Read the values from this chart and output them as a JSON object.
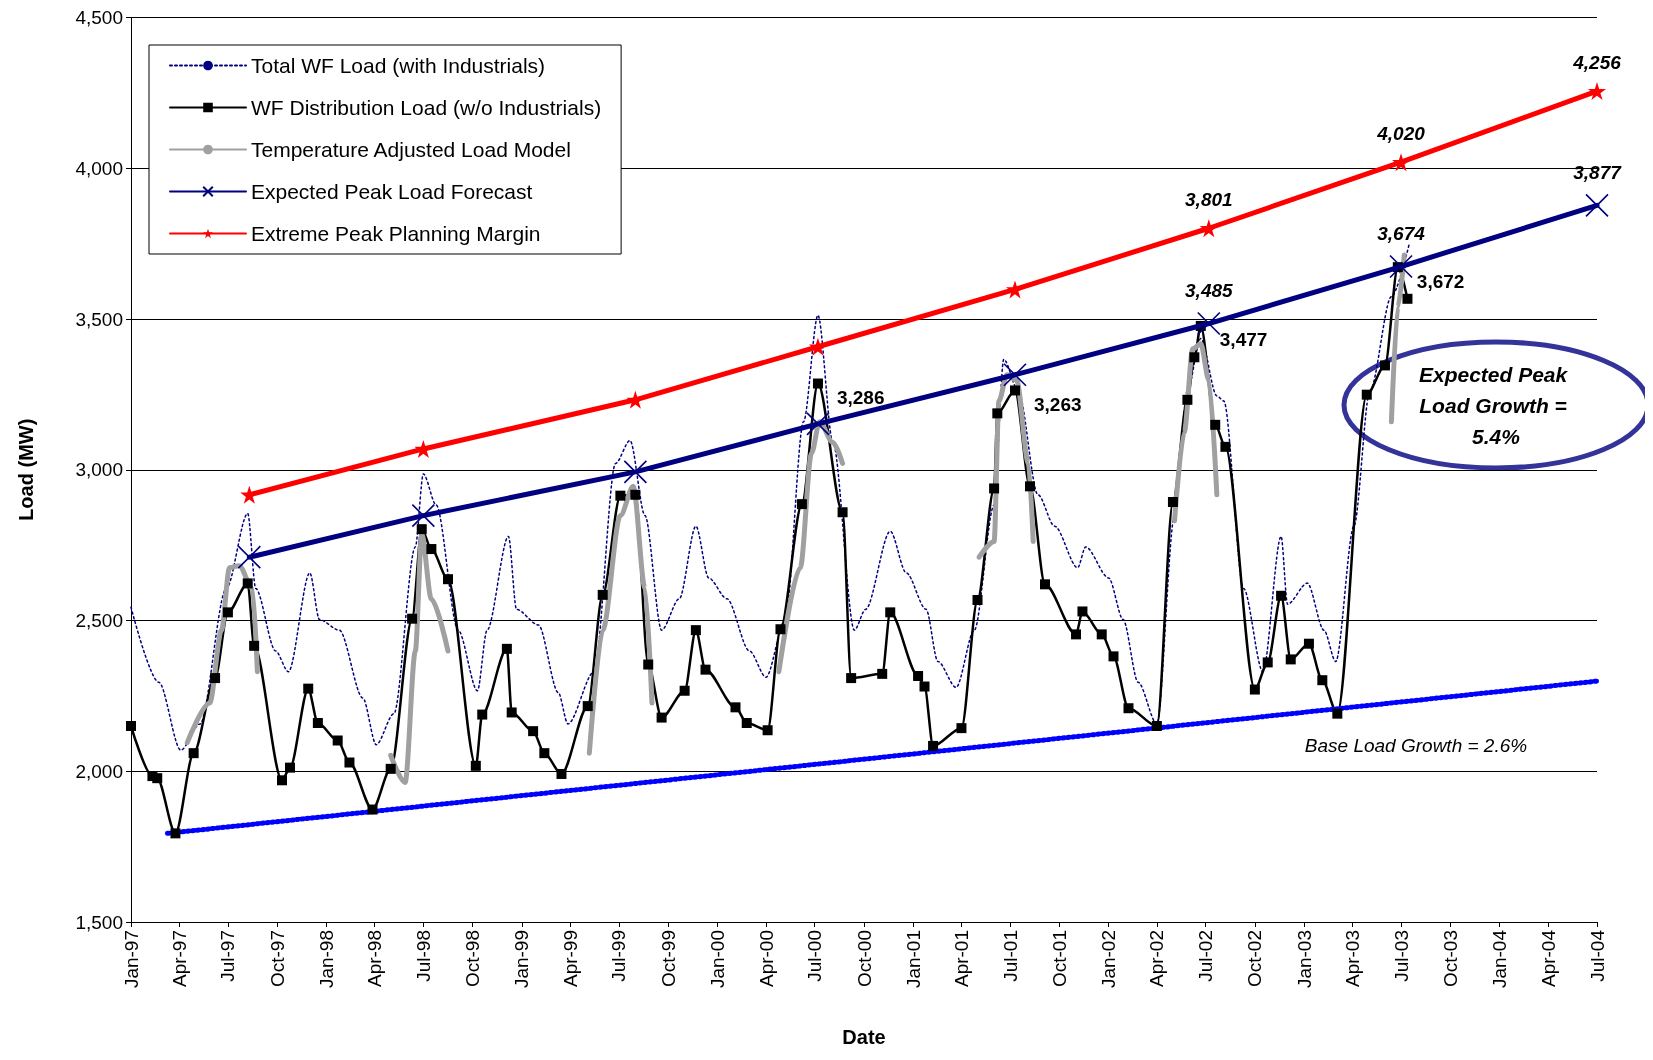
{
  "chart_data": {
    "type": "line",
    "xlabel": "Date",
    "ylabel": "Load (MW)",
    "legend": "top left",
    "grid": "y",
    "xlim": [
      "1997-01",
      "2004-07"
    ],
    "xticks": [
      {
        "value": "1997-01",
        "label": "Jan-97"
      },
      {
        "value": "1997-04",
        "label": "Apr-97"
      },
      {
        "value": "1997-07",
        "label": "Jul-97"
      },
      {
        "value": "1997-10",
        "label": "Oct-97"
      },
      {
        "value": "1998-01",
        "label": "Jan-98"
      },
      {
        "value": "1998-04",
        "label": "Apr-98"
      },
      {
        "value": "1998-07",
        "label": "Jul-98"
      },
      {
        "value": "1998-10",
        "label": "Oct-98"
      },
      {
        "value": "1999-01",
        "label": "Jan-99"
      },
      {
        "value": "1999-04",
        "label": "Apr-99"
      },
      {
        "value": "1999-07",
        "label": "Jul-99"
      },
      {
        "value": "1999-10",
        "label": "Oct-99"
      },
      {
        "value": "2000-01",
        "label": "Jan-00"
      },
      {
        "value": "2000-04",
        "label": "Apr-00"
      },
      {
        "value": "2000-07",
        "label": "Jul-00"
      },
      {
        "value": "2000-10",
        "label": "Oct-00"
      },
      {
        "value": "2001-01",
        "label": "Jan-01"
      },
      {
        "value": "2001-04",
        "label": "Apr-01"
      },
      {
        "value": "2001-07",
        "label": "Jul-01"
      },
      {
        "value": "2001-10",
        "label": "Oct-01"
      },
      {
        "value": "2002-01",
        "label": "Jan-02"
      },
      {
        "value": "2002-04",
        "label": "Apr-02"
      },
      {
        "value": "2002-07",
        "label": "Jul-02"
      },
      {
        "value": "2002-10",
        "label": "Oct-02"
      },
      {
        "value": "2003-01",
        "label": "Jan-03"
      },
      {
        "value": "2003-04",
        "label": "Apr-03"
      },
      {
        "value": "2003-07",
        "label": "Jul-03"
      },
      {
        "value": "2003-10",
        "label": "Oct-03"
      },
      {
        "value": "2004-01",
        "label": "Jan-04"
      },
      {
        "value": "2004-04",
        "label": "Apr-04"
      },
      {
        "value": "2004-07",
        "label": "Jul-04"
      }
    ],
    "ylim": [
      1500,
      4500
    ],
    "yticks": [
      {
        "value": 1500,
        "label": "1,500"
      },
      {
        "value": 2000,
        "label": "2,000"
      },
      {
        "value": 2500,
        "label": "2,500"
      },
      {
        "value": 3000,
        "label": "3,000"
      },
      {
        "value": 3500,
        "label": "3,500"
      },
      {
        "value": 4000,
        "label": "4,000"
      },
      {
        "value": 4500,
        "label": "4,500"
      }
    ],
    "annotations": [
      "Expected Peak Load Growth = 5.4%",
      "Base Load Growth = 2.6%"
    ],
    "series": [
      {
        "name": "Total WF Load (with Industrials)",
        "color": "#000080",
        "marker": "none",
        "line_style": "dotted",
        "x": [
          "1997-01-01",
          "1997-02-22",
          "1997-04-04",
          "1997-05-10",
          "1997-06-28",
          "1997-08-07",
          "1997-08-22",
          "1997-09-28",
          "1997-10-22",
          "1997-12-01",
          "1997-12-19",
          "1998-01-25",
          "1998-03-10",
          "1998-04-04",
          "1998-05-07",
          "1998-06-16",
          "1998-07-01",
          "1998-07-25",
          "1998-09-04",
          "1998-10-10",
          "1998-10-28",
          "1998-12-07",
          "1998-12-22",
          "1999-02-01",
          "1999-03-10",
          "1999-03-28",
          "1999-05-16",
          "1999-06-25",
          "1999-07-22",
          "1999-08-19",
          "1999-09-19",
          "1999-10-22",
          "1999-11-22",
          "1999-12-16",
          "2000-01-19",
          "2000-03-01",
          "2000-04-01",
          "2000-05-07",
          "2000-06-10",
          "2000-07-07",
          "2000-08-04",
          "2000-09-13",
          "2000-10-04",
          "2000-11-19",
          "2000-12-19",
          "2001-01-25",
          "2001-02-16",
          "2001-03-22",
          "2001-04-25",
          "2001-06-01",
          "2001-06-19",
          "2001-07-16",
          "2001-08-22",
          "2001-09-22",
          "2001-11-04",
          "2001-11-19",
          "2002-01-01",
          "2002-01-28",
          "2002-02-25",
          "2002-04-01",
          "2002-05-04",
          "2002-05-28",
          "2002-06-22",
          "2002-07-22",
          "2002-08-04",
          "2002-09-10",
          "2002-10-16",
          "2002-11-19",
          "2002-12-01",
          "2003-01-07",
          "2003-02-07",
          "2003-03-01",
          "2003-04-04",
          "2003-05-04",
          "2003-06-13",
          "2003-07-16"
        ],
        "values": [
          2544,
          2295,
          2070,
          2157,
          2606,
          2855,
          2606,
          2399,
          2330,
          2658,
          2503,
          2468,
          2243,
          2088,
          2191,
          2744,
          2986,
          2883,
          2468,
          2267,
          2468,
          2779,
          2537,
          2485,
          2261,
          2157,
          2330,
          3021,
          3097,
          2848,
          2468,
          2572,
          2813,
          2641,
          2572,
          2399,
          2312,
          2503,
          3159,
          3512,
          3090,
          2468,
          2537,
          2796,
          2658,
          2537,
          2364,
          2278,
          2468,
          2883,
          3366,
          3263,
          2917,
          2813,
          2675,
          2744,
          2641,
          2503,
          2295,
          2157,
          2848,
          3263,
          3435,
          3245,
          3228,
          2606,
          2330,
          2779,
          2554,
          2624,
          2468,
          2364,
          2813,
          3263,
          3574,
          3747
        ]
      },
      {
        "name": "WF Distribution Load (w/o Industrials)",
        "color": "#000000",
        "marker": "square",
        "line_style": "solid",
        "x": [
          "1997-01-01",
          "1997-02-10",
          "1997-02-19",
          "1997-03-25",
          "1997-04-28",
          "1997-06-07",
          "1997-07-01",
          "1997-08-07",
          "1997-08-19",
          "1997-10-10",
          "1997-10-25",
          "1997-11-28",
          "1997-12-16",
          "1998-01-22",
          "1998-02-13",
          "1998-03-28",
          "1998-05-01",
          "1998-06-10",
          "1998-06-28",
          "1998-07-16",
          "1998-08-16",
          "1998-10-07",
          "1998-10-19",
          "1998-12-04",
          "1998-12-13",
          "1999-01-22",
          "1999-02-12",
          "1999-03-16",
          "1999-05-04",
          "1999-06-01",
          "1999-07-04",
          "1999-08-01",
          "1999-08-25",
          "1999-09-19",
          "1999-11-01",
          "1999-11-22",
          "1999-12-10",
          "2000-02-04",
          "2000-02-25",
          "2000-04-04",
          "2000-04-28",
          "2000-06-07",
          "2000-07-07",
          "2000-08-22",
          "2000-09-07",
          "2000-11-04",
          "2000-11-19",
          "2001-01-10",
          "2001-01-22",
          "2001-02-07",
          "2001-04-01",
          "2001-05-01",
          "2001-06-01",
          "2001-06-07",
          "2001-07-10",
          "2001-08-07",
          "2001-09-04",
          "2001-11-01",
          "2001-11-13",
          "2001-12-19",
          "2002-01-10",
          "2002-02-07",
          "2002-04-01",
          "2002-05-01",
          "2002-05-28",
          "2002-06-10",
          "2002-06-22",
          "2002-07-19",
          "2002-08-07",
          "2002-10-01",
          "2002-10-25",
          "2002-11-19",
          "2002-12-07",
          "2003-01-10",
          "2003-02-04",
          "2003-03-04",
          "2003-04-28",
          "2003-06-01",
          "2003-06-25",
          "2003-07-13"
        ],
        "values": [
          2150,
          1984,
          1977,
          1794,
          2060,
          2309,
          2527,
          2623,
          2416,
          1970,
          2012,
          2274,
          2160,
          2102,
          2029,
          1873,
          2008,
          2506,
          2803,
          2737,
          2637,
          2018,
          2188,
          2406,
          2195,
          2133,
          2060,
          1991,
          2216,
          2585,
          2914,
          2917,
          2354,
          2178,
          2267,
          2468,
          2337,
          2212,
          2160,
          2136,
          2471,
          2886,
          3286,
          2859,
          2309,
          2323,
          2527,
          2316,
          2281,
          2084,
          2143,
          2568,
          2938,
          3187,
          3263,
          2945,
          2620,
          2454,
          2530,
          2454,
          2381,
          2209,
          2150,
          2893,
          3232,
          3373,
          3477,
          3149,
          3076,
          2271,
          2361,
          2582,
          2371,
          2423,
          2302,
          2191,
          3249,
          3346,
          3672,
          3567
        ],
        "value_labels": [
          null,
          null,
          null,
          null,
          null,
          null,
          null,
          null,
          null,
          null,
          null,
          null,
          null,
          null,
          null,
          null,
          null,
          null,
          null,
          null,
          null,
          null,
          null,
          null,
          null,
          null,
          null,
          null,
          null,
          null,
          null,
          null,
          null,
          null,
          null,
          null,
          null,
          null,
          null,
          null,
          null,
          null,
          "3,286",
          null,
          null,
          null,
          null,
          null,
          null,
          null,
          null,
          null,
          null,
          null,
          "3,263",
          null,
          null,
          null,
          null,
          null,
          null,
          null,
          null,
          null,
          null,
          null,
          "3,477",
          null,
          null,
          null,
          null,
          null,
          null,
          null,
          null,
          null,
          null,
          null,
          "3,672",
          null
        ]
      },
      {
        "name": "Temperature Adjusted Load Model",
        "color": "#a0a0a0",
        "marker": "none",
        "line_style": "solid",
        "x": [
          "1997-04-16",
          "1997-05-28",
          "1997-06-19",
          "1997-07-04",
          "1997-07-22",
          "1997-08-16",
          "1997-08-25",
          "1997-12-01",
          "1998-05-01",
          "1998-05-28",
          "1998-06-16",
          "1998-06-28",
          "1998-07-16",
          "1998-08-16",
          "1999-01-01",
          "1999-05-07",
          "1999-06-01",
          "1999-07-04",
          "1999-07-28",
          "1999-08-19",
          "1999-09-01",
          "2000-01-01",
          "2000-04-25",
          "2000-06-04",
          "2000-06-25",
          "2000-07-10",
          "2000-08-04",
          "2000-08-22",
          "2001-01-01",
          "2001-05-04",
          "2001-06-01",
          "2001-06-10",
          "2001-06-25",
          "2001-07-13",
          "2001-08-04",
          "2001-08-13",
          "2002-01-01",
          "2002-05-04",
          "2002-05-22",
          "2002-06-07",
          "2002-06-22",
          "2002-07-07",
          "2002-07-22",
          "2003-01-01",
          "2003-06-13",
          "2003-06-25",
          "2003-07-07"
        ],
        "values": [
          2095,
          2226,
          2468,
          2675,
          2682,
          2606,
          2330,
          null,
          2053,
          1963,
          2398,
          2786,
          2571,
          2399,
          null,
          2060,
          2468,
          2848,
          2945,
          2606,
          2226,
          null,
          2330,
          2675,
          3055,
          3159,
          3090,
          3021,
          null,
          2710,
          2762,
          3228,
          3315,
          3297,
          3021,
          2762,
          null,
          2831,
          3124,
          3401,
          3418,
          3297,
          2917,
          null,
          3159,
          3539,
          3712
        ]
      },
      {
        "name": "Expected Peak Load Forecast",
        "color": "#000080",
        "marker": "cross",
        "line_style": "solid",
        "x": [
          "1997-08-10",
          "1998-07-01",
          "1999-08-01",
          "2000-07-07",
          "2001-07-10",
          "2002-07-07",
          "2003-07-01",
          "2004-07-01"
        ],
        "values": [
          2710,
          2848,
          2993,
          3152,
          3315,
          3485,
          3674,
          3877
        ],
        "value_labels": [
          null,
          null,
          null,
          null,
          null,
          "3,485",
          "3,674",
          "3,877"
        ]
      },
      {
        "name": "Extreme Peak Planning Margin",
        "color": "#ff0000",
        "marker": "star",
        "line_style": "solid",
        "x": [
          "1997-08-10",
          "1998-07-01",
          "1999-08-01",
          "2000-07-07",
          "2001-07-10",
          "2002-07-07",
          "2003-07-01",
          "2004-07-01"
        ],
        "values": [
          2917,
          3069,
          3232,
          3408,
          3598,
          3801,
          4020,
          4256
        ],
        "value_labels": [
          null,
          null,
          null,
          null,
          null,
          "3,801",
          "4,020",
          "4,256"
        ]
      },
      {
        "color": "#0000ff",
        "marker": "none",
        "line_style": "dotted",
        "x": [
          "1997-03-10",
          "2004-07-01"
        ],
        "values": [
          1794,
          2299
        ]
      }
    ]
  }
}
